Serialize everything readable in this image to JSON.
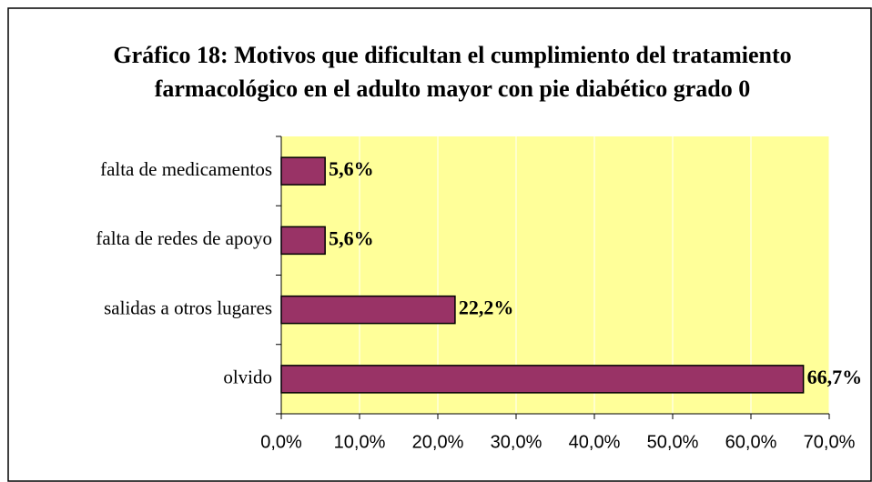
{
  "chart_data": {
    "type": "bar",
    "orientation": "horizontal",
    "title": "Gráfico 18: Motivos que dificultan el cumplimiento del tratamiento farmacológico en el adulto mayor con pie diabético grado 0",
    "categories": [
      "falta de medicamentos",
      "falta de redes de apoyo",
      "salidas a otros lugares",
      "olvido"
    ],
    "values": [
      5.6,
      5.6,
      22.2,
      66.7
    ],
    "value_labels": [
      "5,6%",
      "5,6%",
      "22,2%",
      "66,7%"
    ],
    "color": "#993366",
    "background": "#ffff99",
    "xlim": [
      0,
      70
    ],
    "xticks": [
      {
        "value": 0,
        "label": "0,0%"
      },
      {
        "value": 10,
        "label": "10,0%"
      },
      {
        "value": 20,
        "label": "20,0%"
      },
      {
        "value": 30,
        "label": "30,0%"
      },
      {
        "value": 40,
        "label": "40,0%"
      },
      {
        "value": 50,
        "label": "50,0%"
      },
      {
        "value": 60,
        "label": "60,0%"
      },
      {
        "value": 70,
        "label": "70,0%"
      }
    ],
    "grid": true
  }
}
